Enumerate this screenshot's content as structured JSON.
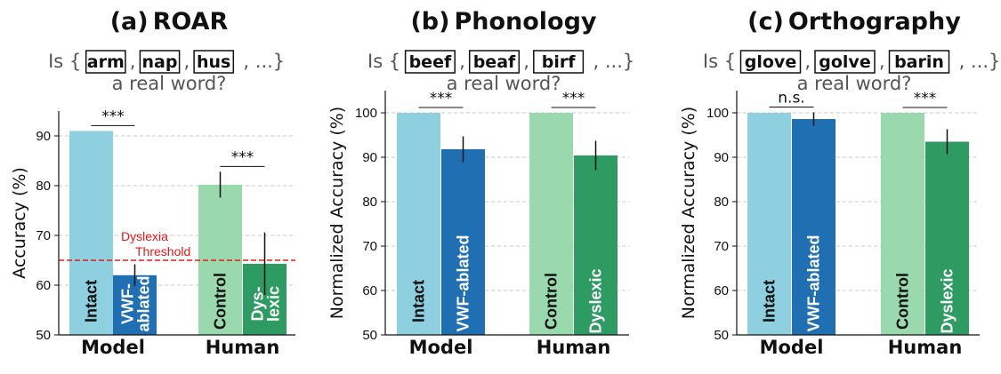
{
  "colors": {
    "intact": "#8fd0e0",
    "vwf_ablated": "#1f6fb2",
    "control": "#9ad8ad",
    "dyslexic": "#2e9b63",
    "threshold": "#e41a1c"
  },
  "chart_data": [
    {
      "type": "bar",
      "title_letter": "(a)",
      "title": "ROAR",
      "question_prefix": "Is {",
      "question_words": [
        "arm",
        "nap",
        "hus"
      ],
      "question_suffix": ", ...}",
      "question_line2": "a real word?",
      "ylabel": "Accuracy (%)",
      "ylim": [
        50,
        95
      ],
      "yticks": [
        50,
        60,
        70,
        80,
        90
      ],
      "categories": [
        "Model",
        "Human"
      ],
      "bars": [
        {
          "label": "Intact",
          "value": 91.0,
          "err": null,
          "color": "intact",
          "label_color": "#111111"
        },
        {
          "label": "VWF-ablated",
          "value": 62.0,
          "err": 2.2,
          "color": "vwf_ablated",
          "label_color": "#ffffff"
        },
        {
          "label": "Control",
          "value": 80.2,
          "err": 2.6,
          "color": "control",
          "label_color": "#111111"
        },
        {
          "label": "Dys-lexic",
          "value": 64.3,
          "err": 6.3,
          "color": "dyslexic",
          "label_color": "#ffffff"
        }
      ],
      "significance": [
        "***",
        "***"
      ],
      "threshold": {
        "value": 65,
        "label_line1": "Dyslexia",
        "label_line2": "Threshold"
      },
      "grid": true
    },
    {
      "type": "bar",
      "title_letter": "(b)",
      "title": "Phonology",
      "question_prefix": "Is {",
      "question_words": [
        "beef",
        "beaf",
        "birf"
      ],
      "question_suffix": ", ...}",
      "question_line2": "a real word?",
      "ylabel": "Normalized Accuracy (%)",
      "ylim": [
        50,
        105
      ],
      "yticks": [
        50,
        60,
        70,
        80,
        90,
        100
      ],
      "categories": [
        "Model",
        "Human"
      ],
      "bars": [
        {
          "label": "Intact",
          "value": 100,
          "err": null,
          "color": "intact",
          "label_color": "#111111"
        },
        {
          "label": "VWF-ablated",
          "value": 91.8,
          "err": 2.9,
          "color": "vwf_ablated",
          "label_color": "#ffffff"
        },
        {
          "label": "Control",
          "value": 100,
          "err": null,
          "color": "control",
          "label_color": "#111111"
        },
        {
          "label": "Dyslexic",
          "value": 90.4,
          "err": 3.3,
          "color": "dyslexic",
          "label_color": "#ffffff"
        }
      ],
      "significance": [
        "***",
        "***"
      ],
      "grid": true
    },
    {
      "type": "bar",
      "title_letter": "(c)",
      "title": "Orthography",
      "question_prefix": "Is {",
      "question_words": [
        "glove",
        "golve",
        "barin"
      ],
      "question_suffix": ", ...}",
      "question_line2": "a real word?",
      "ylabel": "Normalized Accuracy (%)",
      "ylim": [
        50,
        105
      ],
      "yticks": [
        50,
        60,
        70,
        80,
        90,
        100
      ],
      "categories": [
        "Model",
        "Human"
      ],
      "bars": [
        {
          "label": "Intact",
          "value": 100,
          "err": null,
          "color": "intact",
          "label_color": "#111111"
        },
        {
          "label": "VWF-ablated",
          "value": 98.6,
          "err": 1.5,
          "color": "vwf_ablated",
          "label_color": "#ffffff"
        },
        {
          "label": "Control",
          "value": 100,
          "err": null,
          "color": "control",
          "label_color": "#111111"
        },
        {
          "label": "Dyslexic",
          "value": 93.5,
          "err": 2.8,
          "color": "dyslexic",
          "label_color": "#ffffff"
        }
      ],
      "significance": [
        "n.s.",
        "***"
      ],
      "grid": true
    }
  ]
}
